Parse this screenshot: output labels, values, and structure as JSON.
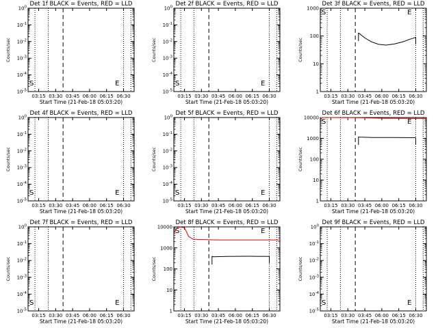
{
  "chart_data": [
    {
      "type": "line",
      "title": "Det 1f BLACK = Events, RED = LLD",
      "xlabel": "Start Time (21-Feb-18 05:03:20)",
      "ylabel": "Counts/sec",
      "x_ticks": [
        "03:15",
        "03:30",
        "03:45",
        "06:00",
        "06:15",
        "06:30"
      ],
      "y_ticks": [
        "10^0",
        "10^-1",
        "10^-2",
        "10^-3",
        "10^-4",
        "10^-5"
      ],
      "y_tick_values": [
        0,
        -1,
        -2,
        -3,
        -4,
        -5
      ],
      "ylim_exp": [
        -5,
        0
      ],
      "y_scale": "log",
      "markers": [
        "S",
        "E"
      ],
      "series": []
    },
    {
      "type": "line",
      "title": "Det 2f BLACK = Events, RED = LLD",
      "xlabel": "Start Time (21-Feb-18 05:03:20)",
      "ylabel": "Counts/sec",
      "x_ticks": [
        "03:15",
        "03:30",
        "03:45",
        "06:00",
        "06:15",
        "06:30"
      ],
      "y_ticks": [
        "10^0",
        "10^-1",
        "10^-2",
        "10^-3",
        "10^-4",
        "10^-5"
      ],
      "y_tick_values": [
        0,
        -1,
        -2,
        -3,
        -4,
        -5
      ],
      "ylim_exp": [
        -5,
        0
      ],
      "y_scale": "log",
      "markers": [
        "S",
        "E"
      ],
      "series": []
    },
    {
      "type": "line",
      "title": "Det 3f BLACK = Events, RED = LLD",
      "xlabel": "Start Time (21-Feb-18 05:03:20)",
      "ylabel": "Counts/sec",
      "x_ticks": [
        "03:15",
        "03:30",
        "03:45",
        "06:00",
        "06:15",
        "06:30"
      ],
      "y_ticks": [
        "1",
        "10",
        "100",
        "1000"
      ],
      "y_tick_values": [
        0,
        1,
        2,
        3
      ],
      "ylim_exp": [
        0,
        3
      ],
      "y_scale": "log",
      "markers": [
        "S",
        "E"
      ],
      "series": [
        {
          "color": "#000000",
          "x": [
            0.36,
            0.37,
            0.42,
            0.48,
            0.55,
            0.62,
            0.7,
            0.78,
            0.84,
            0.88,
            0.9
          ],
          "y": [
            130,
            120,
            85,
            62,
            50,
            47,
            52,
            62,
            75,
            84,
            88
          ]
        }
      ]
    },
    {
      "type": "line",
      "title": "Det 4f BLACK = Events, RED = LLD",
      "xlabel": "Start Time (21-Feb-18 05:03:20)",
      "ylabel": "Counts/sec",
      "x_ticks": [
        "03:15",
        "03:30",
        "03:45",
        "06:00",
        "06:15",
        "06:30"
      ],
      "y_ticks": [
        "10^0",
        "10^-1",
        "10^-2",
        "10^-3",
        "10^-4",
        "10^-5"
      ],
      "y_tick_values": [
        0,
        -1,
        -2,
        -3,
        -4,
        -5
      ],
      "ylim_exp": [
        -5,
        0
      ],
      "y_scale": "log",
      "markers": [
        "S",
        "E"
      ],
      "series": []
    },
    {
      "type": "line",
      "title": "Det 5f BLACK = Events, RED = LLD",
      "xlabel": "Start Time (21-Feb-18 05:03:20)",
      "ylabel": "Counts/sec",
      "x_ticks": [
        "03:15",
        "03:30",
        "03:45",
        "06:00",
        "06:15",
        "06:30"
      ],
      "y_ticks": [
        "10^0",
        "10^-1",
        "10^-2",
        "10^-3",
        "10^-4",
        "10^-5"
      ],
      "y_tick_values": [
        0,
        -1,
        -2,
        -3,
        -4,
        -5
      ],
      "ylim_exp": [
        -5,
        0
      ],
      "y_scale": "log",
      "markers": [
        "S",
        "E"
      ],
      "series": []
    },
    {
      "type": "line",
      "title": "Det 6f BLACK = Events, RED = LLD",
      "xlabel": "Start Time (21-Feb-18 05:03:20)",
      "ylabel": "Counts/sec",
      "x_ticks": [
        "03:15",
        "03:30",
        "03:45",
        "06:00",
        "06:15",
        "06:30"
      ],
      "y_ticks": [
        "1",
        "10",
        "100",
        "1000",
        "10000"
      ],
      "y_tick_values": [
        0,
        1,
        2,
        3,
        4
      ],
      "ylim_exp": [
        0,
        4
      ],
      "y_scale": "log",
      "markers": [
        "S",
        "E"
      ],
      "series": [
        {
          "color": "#000000",
          "x": [
            0.36,
            0.37,
            0.5,
            0.7,
            0.9
          ],
          "y": [
            1200,
            1150,
            1100,
            1100,
            1080
          ]
        },
        {
          "color": "#dd0000",
          "x": [
            0.0,
            0.1,
            0.36,
            0.6,
            0.9,
            1.0
          ],
          "y": [
            10000,
            10000,
            9800,
            9200,
            9000,
            9000
          ]
        }
      ]
    },
    {
      "type": "line",
      "title": "Det 7f BLACK = Events, RED = LLD",
      "xlabel": "Start Time (21-Feb-18 05:03:20)",
      "ylabel": "Counts/sec",
      "x_ticks": [
        "03:15",
        "03:30",
        "03:45",
        "06:00",
        "06:15",
        "06:30"
      ],
      "y_ticks": [
        "10^0",
        "10^-1",
        "10^-2",
        "10^-3",
        "10^-4",
        "10^-5"
      ],
      "y_tick_values": [
        0,
        -1,
        -2,
        -3,
        -4,
        -5
      ],
      "ylim_exp": [
        -5,
        0
      ],
      "y_scale": "log",
      "markers": [
        "S",
        "E"
      ],
      "series": []
    },
    {
      "type": "line",
      "title": "Det 8f BLACK = Events, RED = LLD",
      "xlabel": "Start Time (21-Feb-18 05:03:20)",
      "ylabel": "Counts/sec",
      "x_ticks": [
        "03:15",
        "03:30",
        "03:45",
        "06:00",
        "06:15",
        "06:30"
      ],
      "y_ticks": [
        "1",
        "10",
        "100",
        "1000",
        "10000"
      ],
      "y_tick_values": [
        0,
        1,
        2,
        3,
        4
      ],
      "ylim_exp": [
        0,
        4
      ],
      "y_scale": "log",
      "markers": [
        "S",
        "E"
      ],
      "series": [
        {
          "color": "#000000",
          "x": [
            0.36,
            0.37,
            0.5,
            0.7,
            0.9
          ],
          "y": [
            400,
            380,
            390,
            400,
            390
          ]
        },
        {
          "color": "#dd0000",
          "x": [
            0.0,
            0.03,
            0.06,
            0.1,
            0.14,
            0.18,
            0.25,
            0.4,
            0.6,
            0.8,
            1.0
          ],
          "y": [
            5000,
            9000,
            13000,
            9000,
            3500,
            2600,
            2500,
            2400,
            2400,
            2400,
            2400
          ]
        }
      ]
    },
    {
      "type": "line",
      "title": "Det 9f BLACK = Events, RED = LLD",
      "xlabel": "Start Time (21-Feb-18 05:03:20)",
      "ylabel": "Counts/sec",
      "x_ticks": [
        "03:15",
        "03:30",
        "03:45",
        "06:00",
        "06:15",
        "06:30"
      ],
      "y_ticks": [
        "10^0",
        "10^-1",
        "10^-2",
        "10^-3",
        "10^-4",
        "10^-5"
      ],
      "y_tick_values": [
        0,
        -1,
        -2,
        -3,
        -4,
        -5
      ],
      "ylim_exp": [
        -5,
        0
      ],
      "y_scale": "log",
      "markers": [
        "S",
        "E"
      ],
      "series": []
    }
  ]
}
